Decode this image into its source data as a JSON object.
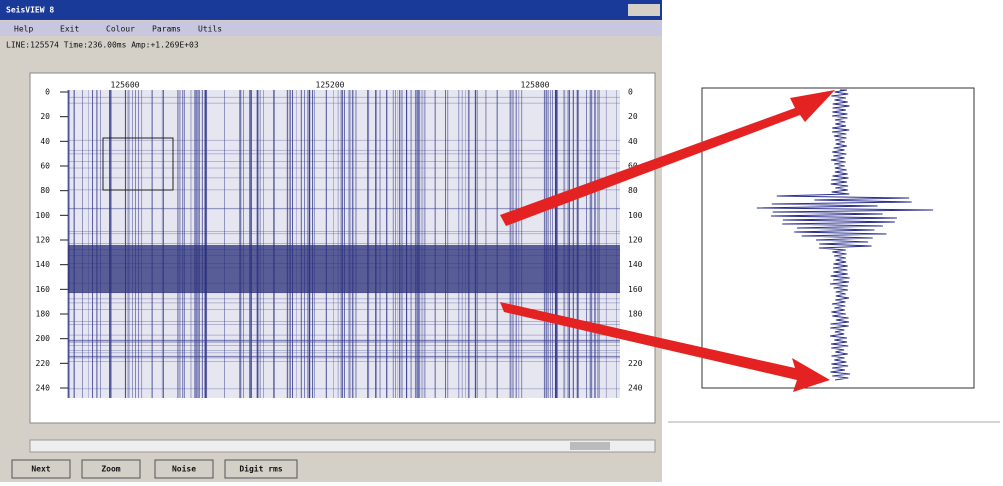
{
  "window": {
    "title": "SeisVIEW 8",
    "menu": [
      "Help",
      "Exit",
      "Colour",
      "Params",
      "Utils"
    ],
    "status": "LINE:125574   Time:236.00ms   Amp:+1.269E+03",
    "buttons": [
      "Next",
      "Zoom",
      "Noise",
      "Digit rms"
    ]
  },
  "section": {
    "top_labels": [
      "125600",
      "125200",
      "125800"
    ],
    "depth_labels": [
      0,
      20,
      40,
      60,
      80,
      100,
      120,
      140,
      160,
      180,
      200,
      220,
      240
    ]
  }
}
